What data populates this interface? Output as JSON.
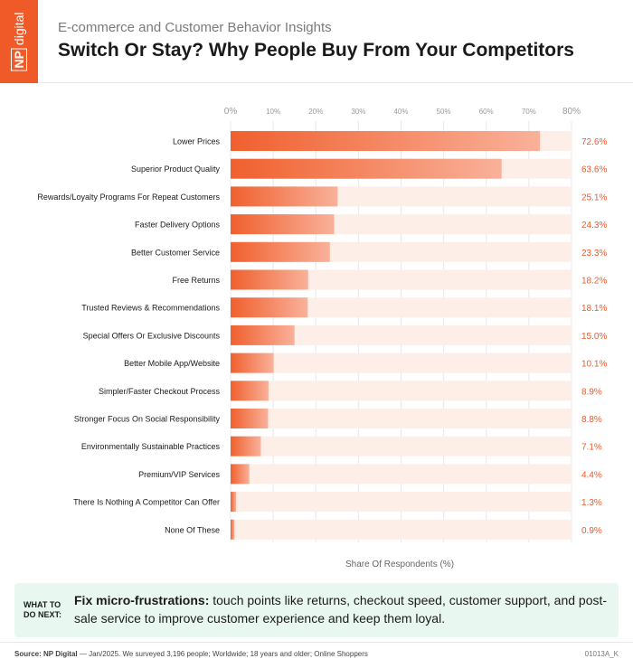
{
  "brand": {
    "logo_np": "NP",
    "logo_word": "digital",
    "color": "#f05a28"
  },
  "header": {
    "subtitle": "E-commerce and Customer Behavior Insights",
    "title": "Switch Or Stay? Why People Buy From Your Competitors"
  },
  "chart_data": {
    "type": "bar",
    "orientation": "horizontal",
    "title": "Switch Or Stay? Why People Buy From Your Competitors",
    "xlabel": "Share Of Respondents (%)",
    "xlim": [
      0,
      80
    ],
    "xticks": [
      "0%",
      "10%",
      "20%",
      "30%",
      "40%",
      "50%",
      "60%",
      "70%",
      "80%"
    ],
    "grid": true,
    "categories": [
      "Lower Prices",
      "Superior Product Quality",
      "Rewards/Loyalty Programs For Repeat Customers",
      "Faster Delivery Options",
      "Better Customer Service",
      "Free Returns",
      "Trusted Reviews & Recommendations",
      "Special Offers Or Exclusive Discounts",
      "Better Mobile App/Website",
      "Simpler/Faster Checkout Process",
      "Stronger Focus On Social Responsibility",
      "Environmentally Sustainable Practices",
      "Premium/VIP Services",
      "There Is Nothing A Competitor Can Offer",
      "None Of These"
    ],
    "values": [
      72.6,
      63.6,
      25.1,
      24.3,
      23.3,
      18.2,
      18.1,
      15.0,
      10.1,
      8.9,
      8.8,
      7.1,
      4.4,
      1.3,
      0.9
    ],
    "value_labels": [
      "72.6%",
      "63.6%",
      "25.1%",
      "24.3%",
      "23.3%",
      "18.2%",
      "18.1%",
      "15.0%",
      "10.1%",
      "8.9%",
      "8.8%",
      "7.1%",
      "4.4%",
      "1.3%",
      "0.9%"
    ],
    "colors": {
      "bar_start": "#f0602e",
      "bar_end": "#f9b19a",
      "track": "#fdeee8",
      "value_text": "#f05a28",
      "grid": "#e8e8e8"
    }
  },
  "callout": {
    "label_line1": "WHAT TO",
    "label_line2": "DO NEXT:",
    "heading": "Fix micro-frustrations:",
    "text": " touch points like returns, checkout speed, customer support, and post-sale service to improve customer experience and keep them loyal."
  },
  "footer": {
    "source_label": "Source: NP Digital",
    "source_text": " — Jan/2025. We surveyed 3,196 people; Worldwide; 18 years and older; Online Shoppers",
    "code": "01013A_K"
  }
}
